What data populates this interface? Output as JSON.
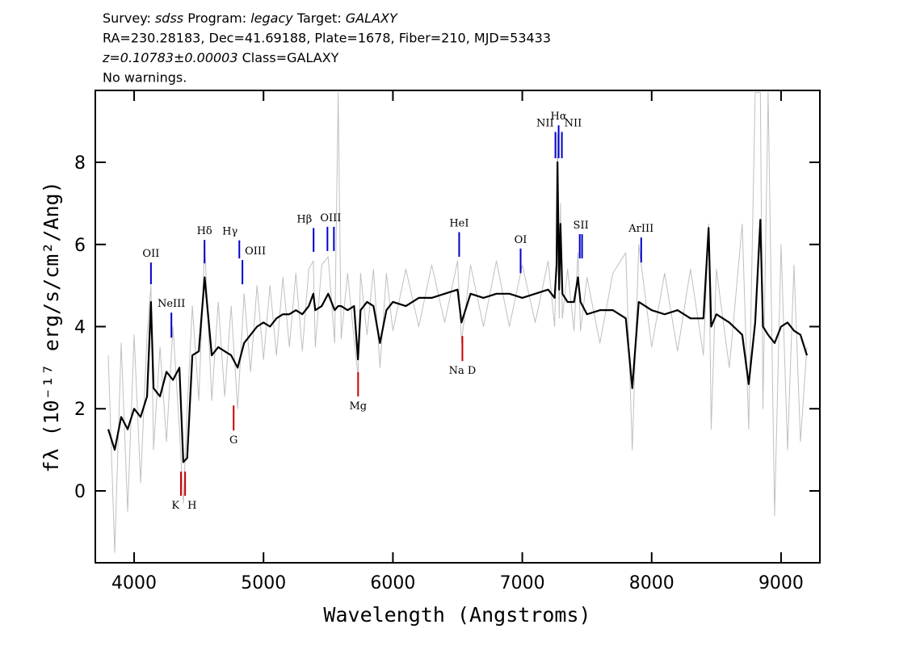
{
  "chart_data": {
    "type": "line",
    "title_lines": [
      [
        {
          "text": "Survey: "
        },
        {
          "text": "sdss",
          "style": "italic"
        },
        {
          "text": " Program: "
        },
        {
          "text": "legacy",
          "style": "italic"
        },
        {
          "text": " Target: "
        },
        {
          "text": "GALAXY",
          "style": "italic"
        }
      ],
      [
        {
          "text": "RA=230.28183, Dec=41.69188, Plate=1678, Fiber=210, MJD=53433"
        }
      ],
      [
        {
          "text": "z=0.10783±0.00003",
          "style": "italic"
        },
        {
          "text": " Class=GALAXY"
        }
      ],
      [
        {
          "text": "No warnings."
        }
      ]
    ],
    "xlabel": "Wavelength (Angstroms)",
    "ylabel": "fλ (10⁻¹⁷ erg/s/cm²/Ang)",
    "xlim": [
      3700,
      9300
    ],
    "ylim": [
      -1.75,
      9.75
    ],
    "xticks": [
      4000,
      5000,
      6000,
      7000,
      8000,
      9000
    ],
    "yticks": [
      0,
      2,
      4,
      6,
      8
    ],
    "x": [
      3800,
      3850,
      3900,
      3950,
      4000,
      4050,
      4100,
      4130,
      4150,
      4200,
      4250,
      4300,
      4350,
      4380,
      4410,
      4450,
      4500,
      4545,
      4600,
      4650,
      4700,
      4750,
      4800,
      4850,
      4900,
      4950,
      5000,
      5050,
      5100,
      5150,
      5200,
      5250,
      5300,
      5350,
      5385,
      5400,
      5450,
      5500,
      5550,
      5577,
      5600,
      5650,
      5700,
      5730,
      5750,
      5800,
      5850,
      5900,
      5950,
      6000,
      6100,
      6200,
      6300,
      6400,
      6500,
      6530,
      6600,
      6700,
      6800,
      6900,
      7000,
      7100,
      7200,
      7250,
      7265,
      7272,
      7285,
      7295,
      7310,
      7350,
      7400,
      7430,
      7450,
      7500,
      7600,
      7700,
      7800,
      7850,
      7900,
      8000,
      8100,
      8200,
      8300,
      8400,
      8440,
      8460,
      8500,
      8600,
      8700,
      8750,
      8800,
      8840,
      8860,
      8900,
      8950,
      9000,
      9050,
      9100,
      9150,
      9200
    ],
    "series": [
      {
        "color": "#c0c0c0",
        "values": [
          3.3,
          -1.5,
          3.6,
          -0.5,
          3.8,
          0.2,
          3.8,
          5.0,
          1.0,
          3.5,
          1.2,
          4.0,
          1.5,
          -0.3,
          2.0,
          4.5,
          2.2,
          6.0,
          2.2,
          4.6,
          2.3,
          4.5,
          2.0,
          4.8,
          2.9,
          5.0,
          3.2,
          5.0,
          3.3,
          5.2,
          3.5,
          5.3,
          3.4,
          5.4,
          5.6,
          3.5,
          5.5,
          5.7,
          3.6,
          9.7,
          3.7,
          5.3,
          3.7,
          2.8,
          5.3,
          3.8,
          5.4,
          3.0,
          5.3,
          3.9,
          5.4,
          4.0,
          5.5,
          4.1,
          5.6,
          3.6,
          5.5,
          4.0,
          5.6,
          4.0,
          5.5,
          4.1,
          5.6,
          4.0,
          6.0,
          8.7,
          4.2,
          7.0,
          4.2,
          5.4,
          3.9,
          5.8,
          3.9,
          5.2,
          3.6,
          5.3,
          5.8,
          1.0,
          6.0,
          3.5,
          5.3,
          3.4,
          5.4,
          3.3,
          6.5,
          1.5,
          5.4,
          3.0,
          6.5,
          1.5,
          9.7,
          9.7,
          2.0,
          9.7,
          -0.6,
          6.0,
          1.0,
          5.5,
          1.2,
          3.5
        ]
      },
      {
        "color": "#000000",
        "values": [
          1.5,
          1.0,
          1.8,
          1.5,
          2.0,
          1.8,
          2.3,
          4.6,
          2.5,
          2.3,
          2.9,
          2.7,
          3.0,
          0.7,
          0.8,
          3.3,
          3.4,
          5.2,
          3.3,
          3.5,
          3.4,
          3.3,
          3.0,
          3.6,
          3.8,
          4.0,
          4.1,
          4.0,
          4.2,
          4.3,
          4.3,
          4.4,
          4.3,
          4.5,
          4.8,
          4.4,
          4.5,
          4.8,
          4.4,
          4.5,
          4.5,
          4.4,
          4.5,
          3.2,
          4.4,
          4.6,
          4.5,
          3.6,
          4.4,
          4.6,
          4.5,
          4.7,
          4.7,
          4.8,
          4.9,
          4.1,
          4.8,
          4.7,
          4.8,
          4.8,
          4.7,
          4.8,
          4.9,
          4.7,
          5.5,
          8.0,
          4.9,
          6.5,
          4.8,
          4.6,
          4.6,
          5.2,
          4.6,
          4.3,
          4.4,
          4.4,
          4.2,
          2.5,
          4.6,
          4.4,
          4.3,
          4.4,
          4.2,
          4.2,
          6.4,
          4.0,
          4.3,
          4.1,
          3.8,
          2.6,
          4.1,
          6.6,
          4.0,
          3.8,
          3.6,
          4.0,
          4.1,
          3.9,
          3.8,
          3.3
        ]
      }
    ],
    "annotations": [
      {
        "label": "OII",
        "x": [
          4130
        ],
        "y": [
          5.03,
          5.56
        ],
        "color": "#0000cc"
      },
      {
        "label": "NeIII",
        "x": [
          4288
        ],
        "y": [
          3.73,
          4.34
        ],
        "color": "#0000cc"
      },
      {
        "label": "Hδ",
        "x": [
          4544
        ],
        "y": [
          5.54,
          6.11
        ],
        "color": "#0000cc"
      },
      {
        "label": "Hγ",
        "x": [
          4813
        ],
        "y": [
          5.66,
          6.1
        ],
        "color": "#0000cc",
        "anchor": "end"
      },
      {
        "label": "OIII",
        "x": [
          4837
        ],
        "y": [
          5.03,
          5.62
        ],
        "color": "#0000cc",
        "anchor": "start"
      },
      {
        "label": "Hβ",
        "x": [
          5387
        ],
        "y": [
          5.82,
          6.4
        ],
        "color": "#0000cc",
        "anchor": "end"
      },
      {
        "label": "OIII",
        "x": [
          5494,
          5544
        ],
        "y": [
          5.84,
          6.43
        ],
        "color": "#0000cc"
      },
      {
        "label": "HeI",
        "x": [
          6512
        ],
        "y": [
          5.7,
          6.3
        ],
        "color": "#0000cc"
      },
      {
        "label": "OI",
        "x": [
          6987
        ],
        "y": [
          5.3,
          5.9
        ],
        "color": "#0000cc"
      },
      {
        "label": "NII",
        "x": [
          7256
        ],
        "y": [
          8.1,
          8.74
        ],
        "color": "#0000cc",
        "anchor": "end"
      },
      {
        "label": "Hα",
        "x": [
          7281
        ],
        "y": [
          8.1,
          8.9
        ],
        "color": "#0000cc"
      },
      {
        "label": "NII",
        "x": [
          7306
        ],
        "y": [
          8.1,
          8.74
        ],
        "color": "#0000cc",
        "anchor": "start"
      },
      {
        "label": "SII",
        "x": [
          7444,
          7462
        ],
        "y": [
          5.66,
          6.25
        ],
        "color": "#0000cc"
      },
      {
        "label": "ArIII",
        "x": [
          7919
        ],
        "y": [
          5.56,
          6.17
        ],
        "color": "#0000cc"
      },
      {
        "label": "K",
        "x": [
          4362
        ],
        "y": [
          -0.12,
          0.47
        ],
        "color": "#cc0000",
        "below": true,
        "anchor": "end"
      },
      {
        "label": "H",
        "x": [
          4394
        ],
        "y": [
          -0.12,
          0.47
        ],
        "color": "#cc0000",
        "below": true,
        "anchor": "start"
      },
      {
        "label": "G",
        "x": [
          4769
        ],
        "y": [
          1.47,
          2.08
        ],
        "color": "#cc0000",
        "below": true
      },
      {
        "label": "Mg",
        "x": [
          5731
        ],
        "y": [
          2.3,
          2.89
        ],
        "color": "#cc0000",
        "below": true
      },
      {
        "label": "Na D",
        "x": [
          6537
        ],
        "y": [
          3.16,
          3.77
        ],
        "color": "#cc0000",
        "below": true
      }
    ]
  }
}
